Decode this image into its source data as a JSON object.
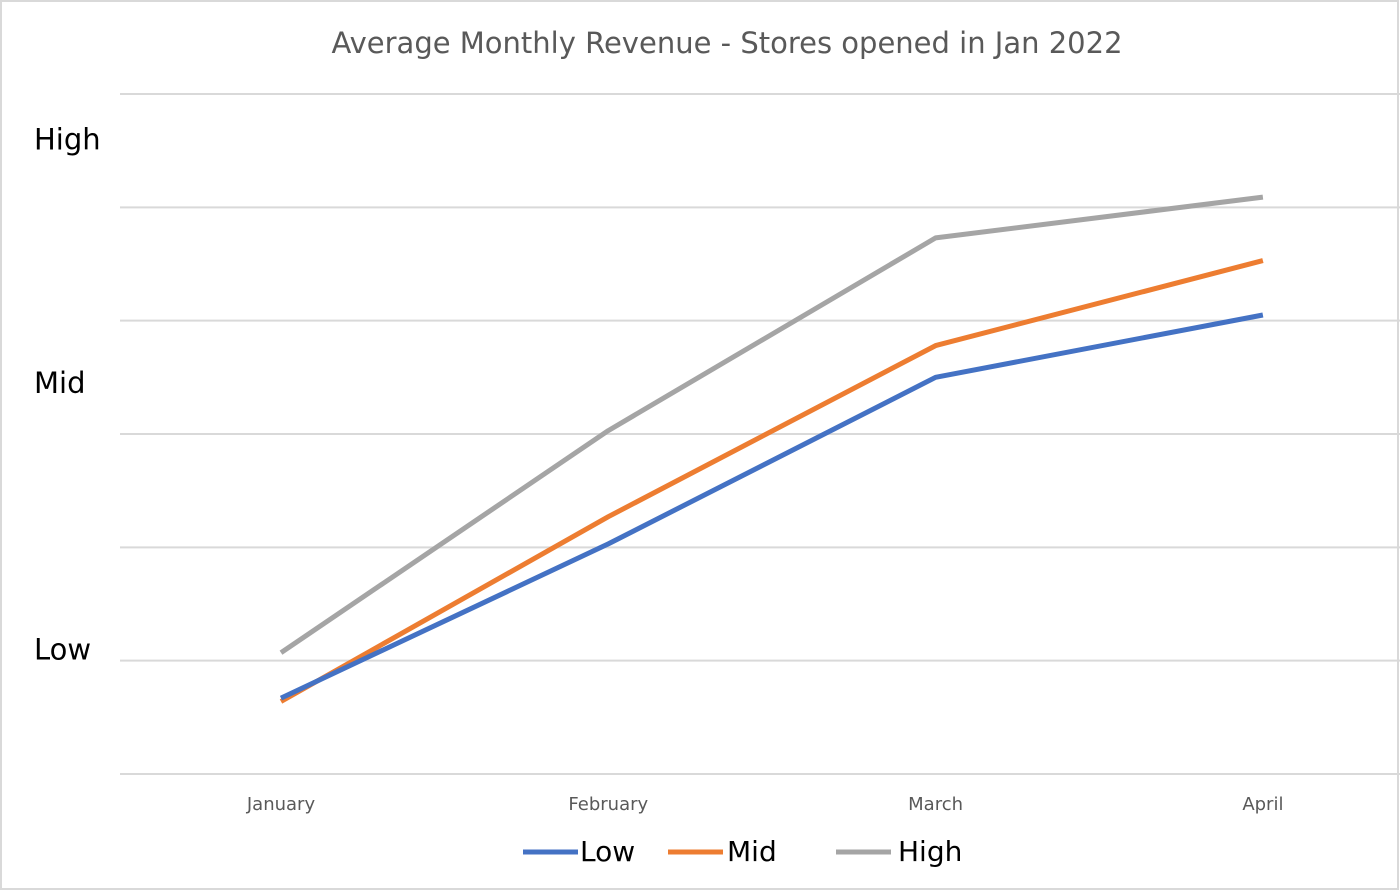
{
  "chart_data": {
    "type": "line",
    "title": "Average Monthly Revenue - Stores opened in Jan 2022",
    "categories": [
      "January",
      "February",
      "March",
      "April"
    ],
    "y_category_labels": [
      {
        "label": "High",
        "value": 5.6
      },
      {
        "label": "Mid",
        "value": 3.45
      },
      {
        "label": "Low",
        "value": 1.1
      }
    ],
    "ylim": [
      0,
      6
    ],
    "grid": true,
    "series": [
      {
        "name": "Low",
        "color": "#4472C4",
        "values": [
          0.67,
          2.03,
          3.5,
          4.05
        ]
      },
      {
        "name": "Mid",
        "color": "#ED7D31",
        "values": [
          0.64,
          2.27,
          3.78,
          4.53
        ]
      },
      {
        "name": "High",
        "color": "#A5A5A5",
        "values": [
          1.07,
          3.03,
          4.73,
          5.09
        ]
      }
    ],
    "legend": "bottom-center"
  }
}
